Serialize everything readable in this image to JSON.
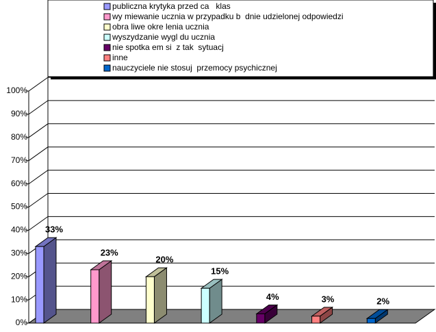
{
  "chart_data": {
    "type": "bar",
    "categories": [
      null
    ],
    "series": [
      {
        "name": "publiczna krytyka przed ca   klas",
        "color": "#9999ff",
        "values": [
          33
        ],
        "value_labels": [
          "33%"
        ]
      },
      {
        "name": "wy miewanie ucznia w przypadku b  dnie udzielonej odpowiedzi",
        "color": "#ff99cc",
        "values": [
          23
        ],
        "value_labels": [
          "23%"
        ]
      },
      {
        "name": "obra liwe okre lenia ucznia",
        "color": "#ffffcc",
        "values": [
          20
        ],
        "value_labels": [
          "20%"
        ]
      },
      {
        "name": "wyszydzanie wygl du ucznia",
        "color": "#ccffff",
        "values": [
          15
        ],
        "value_labels": [
          "15%"
        ]
      },
      {
        "name": "nie spotka em si  z tak  sytuacj",
        "color": "#660066",
        "values": [
          4
        ],
        "value_labels": [
          "4%"
        ]
      },
      {
        "name": "inne",
        "color": "#ff8080",
        "values": [
          3
        ],
        "value_labels": [
          "3%"
        ]
      },
      {
        "name": "nauczyciele nie stosuj  przemocy psychicznej",
        "color": "#0066cc",
        "values": [
          2
        ],
        "value_labels": [
          "2%"
        ]
      }
    ],
    "ylim": [
      0,
      100
    ],
    "yticks": [
      {
        "value": 0,
        "label": "0%"
      },
      {
        "value": 10,
        "label": "10%"
      },
      {
        "value": 20,
        "label": "20%"
      },
      {
        "value": 30,
        "label": "30%"
      },
      {
        "value": 40,
        "label": "40%"
      },
      {
        "value": 50,
        "label": "50%"
      },
      {
        "value": 60,
        "label": "60%"
      },
      {
        "value": 70,
        "label": "70%"
      },
      {
        "value": 80,
        "label": "80%"
      },
      {
        "value": 90,
        "label": "90%"
      },
      {
        "value": 100,
        "label": "100%"
      }
    ],
    "grid": true
  }
}
